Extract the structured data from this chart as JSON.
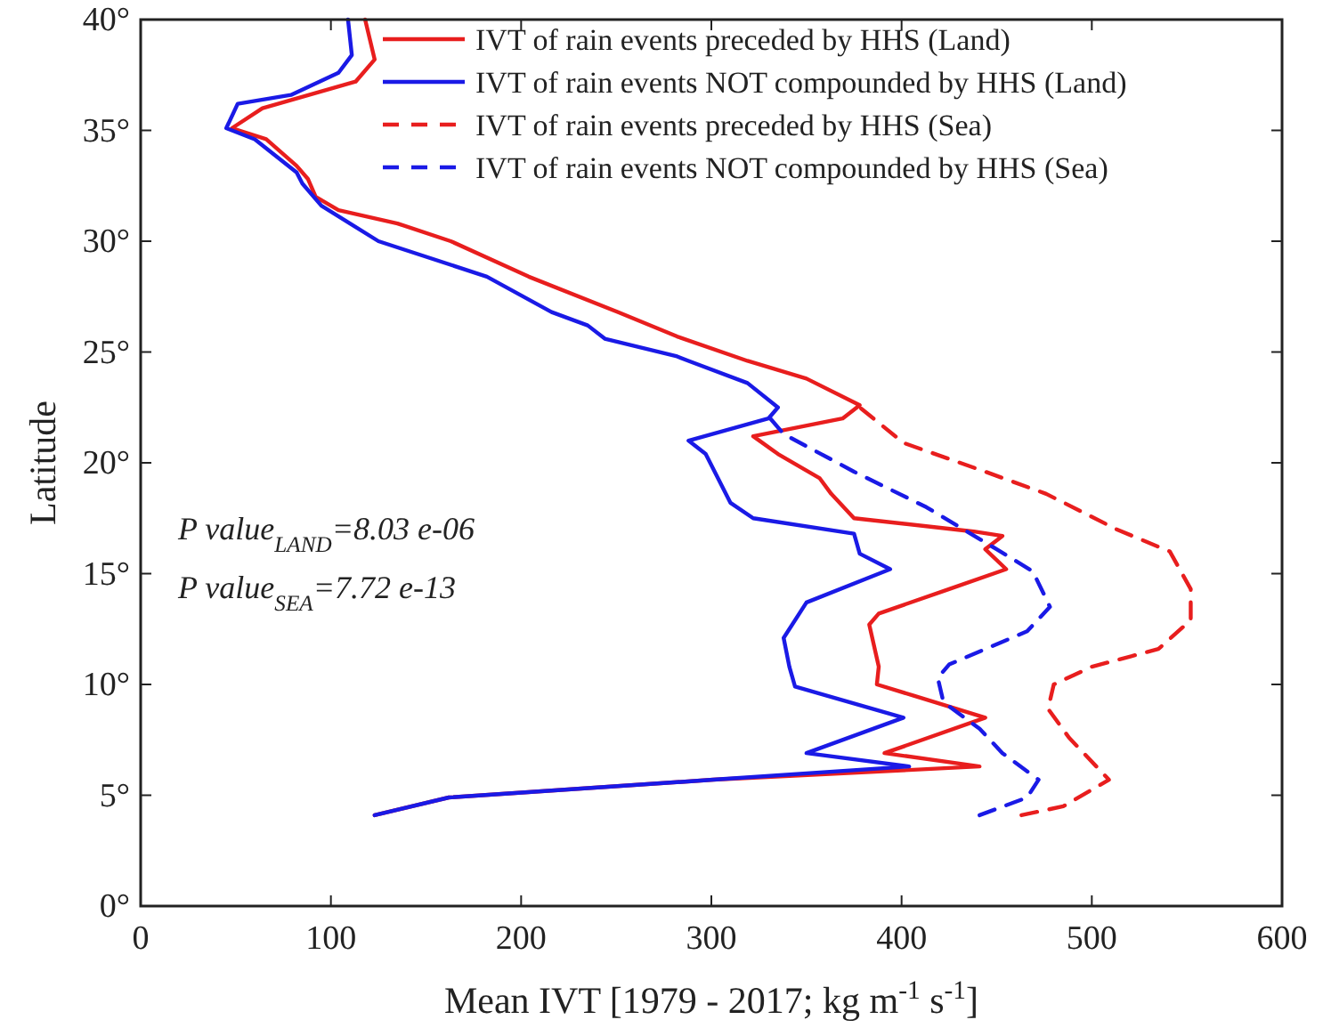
{
  "chart_data": {
    "type": "line",
    "xlabel": "Mean IVT [1979 - 2017; kg m$^{-1}$ s$^{-1}$]",
    "ylabel": "Latitude",
    "xlim": [
      0,
      600
    ],
    "ylim": [
      0,
      40
    ],
    "xticks": [
      0,
      100,
      200,
      300,
      400,
      500,
      600
    ],
    "yticks": [
      {
        "value": 0,
        "label": "0°"
      },
      {
        "value": 5,
        "label": "5°"
      },
      {
        "value": 10,
        "label": "10°"
      },
      {
        "value": 15,
        "label": "15°"
      },
      {
        "value": 20,
        "label": "20°"
      },
      {
        "value": 25,
        "label": "25°"
      },
      {
        "value": 30,
        "label": "30°"
      },
      {
        "value": 35,
        "label": "35°"
      },
      {
        "value": 40,
        "label": "40°"
      }
    ],
    "legend": "top right",
    "grid": false,
    "annotations": [
      "P value$_{LAND}$=8.03 e-06",
      "P value$_{SEA}$=7.72 e-13"
    ],
    "series": [
      {
        "name": "IVT of rain events preceded by HHS (Land)",
        "color": "#e81e1e",
        "line_style": "solid",
        "x": [
          123,
          162,
          301,
          441,
          391,
          444,
          406,
          387,
          388,
          383,
          388,
          425,
          455,
          444,
          453,
          438,
          375,
          363,
          357,
          335,
          322,
          369,
          378,
          350,
          319,
          282,
          251,
          204,
          163,
          135,
          104,
          92,
          88,
          82,
          66,
          48,
          64,
          113,
          123,
          118
        ],
        "values": [
          4.1,
          4.9,
          5.7,
          6.3,
          6.9,
          8.5,
          9.5,
          10.0,
          10.8,
          12.7,
          13.2,
          14.3,
          15.2,
          16.1,
          16.7,
          16.9,
          17.5,
          18.6,
          19.3,
          20.4,
          21.2,
          22.0,
          22.6,
          23.8,
          24.6,
          25.7,
          26.8,
          28.4,
          30.0,
          30.8,
          31.4,
          32.0,
          32.8,
          33.4,
          34.6,
          35.1,
          36.0,
          37.2,
          38.2,
          40
        ]
      },
      {
        "name": "IVT of rain events NOT compounded by HHS (Land)",
        "color": "#1a1ae6",
        "line_style": "solid",
        "x": [
          123,
          162,
          301,
          404,
          350,
          401,
          344,
          341,
          338,
          350,
          394,
          378,
          375,
          322,
          310,
          297,
          288,
          330,
          335,
          319,
          288,
          282,
          244,
          235,
          216,
          182,
          125,
          95,
          85,
          82,
          60,
          45,
          51,
          79,
          104,
          111,
          109
        ],
        "values": [
          4.1,
          4.9,
          5.7,
          6.3,
          6.9,
          8.5,
          9.9,
          10.8,
          12.1,
          13.7,
          15.2,
          15.9,
          16.8,
          17.5,
          18.2,
          20.4,
          21.0,
          22.0,
          22.5,
          23.6,
          24.6,
          24.8,
          25.6,
          26.2,
          26.8,
          28.4,
          30.0,
          31.6,
          32.6,
          33.1,
          34.6,
          35.1,
          36.2,
          36.6,
          37.6,
          38.4,
          40
        ]
      },
      {
        "name": "IVT of rain events preceded by HHS (Sea)",
        "color": "#e81e1e",
        "line_style": "dashed",
        "x": [
          463,
          485,
          509,
          488,
          477,
          480,
          500,
          535,
          552,
          552,
          541,
          513,
          476,
          444,
          401,
          378
        ],
        "values": [
          4.1,
          4.5,
          5.7,
          7.6,
          8.9,
          10.0,
          10.8,
          11.6,
          12.9,
          14.3,
          16.0,
          17.0,
          18.6,
          19.6,
          20.9,
          22.5
        ]
      },
      {
        "name": "IVT of rain events NOT compounded by HHS (Sea)",
        "color": "#1a1ae6",
        "line_style": "dashed",
        "x": [
          441,
          466,
          472,
          453,
          441,
          422,
          419,
          425,
          466,
          478,
          469,
          450,
          413,
          375,
          338,
          331
        ],
        "values": [
          4.1,
          4.9,
          5.7,
          6.9,
          8.0,
          9.2,
          10.3,
          10.9,
          12.4,
          13.5,
          15.1,
          16.1,
          18.0,
          19.6,
          21.3,
          22.0
        ]
      }
    ]
  }
}
